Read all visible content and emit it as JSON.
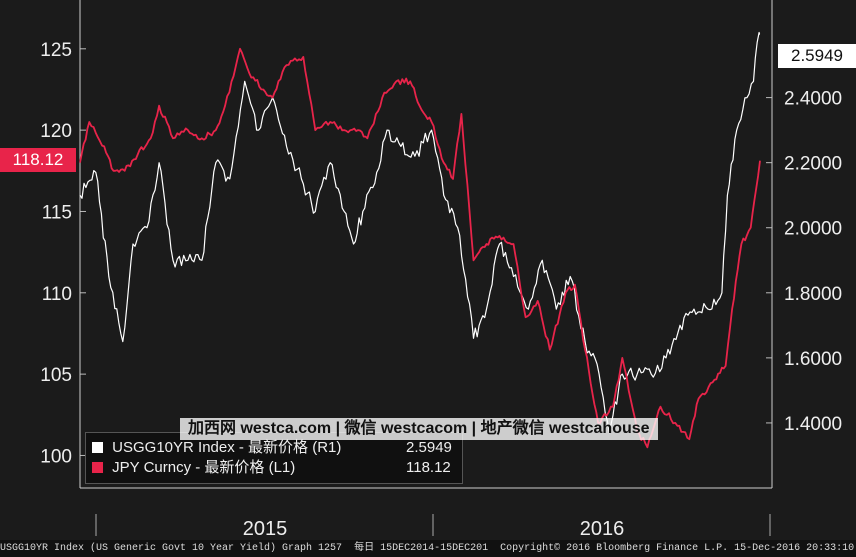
{
  "chart_data": {
    "type": "line",
    "x_range": [
      "2014-12-15",
      "2016-12-15"
    ],
    "x_ticks": [
      "2015",
      "2016"
    ],
    "left_axis": {
      "ticks": [
        "100",
        "105",
        "110",
        "115",
        "120",
        "125"
      ],
      "range": [
        98,
        128
      ]
    },
    "right_axis": {
      "ticks": [
        "1.4000",
        "1.6000",
        "1.8000",
        "2.0000",
        "2.2000",
        "2.4000"
      ],
      "range": [
        1.2,
        2.7
      ]
    },
    "series": [
      {
        "name": "USGG10YR Index - 最新价格 (R1)",
        "last_value": "2.5949",
        "axis": "right",
        "color": "#ffffff",
        "values": [
          [
            "2014-12-15",
            2.1
          ],
          [
            "2015-01-01",
            2.17
          ],
          [
            "2015-01-15",
            1.85
          ],
          [
            "2015-01-30",
            1.65
          ],
          [
            "2015-02-10",
            1.95
          ],
          [
            "2015-02-25",
            2.0
          ],
          [
            "2015-03-10",
            2.2
          ],
          [
            "2015-03-25",
            1.9
          ],
          [
            "2015-04-10",
            1.9
          ],
          [
            "2015-04-25",
            1.9
          ],
          [
            "2015-05-10",
            2.2
          ],
          [
            "2015-05-25",
            2.15
          ],
          [
            "2015-06-10",
            2.45
          ],
          [
            "2015-06-25",
            2.3
          ],
          [
            "2015-07-10",
            2.4
          ],
          [
            "2015-07-25",
            2.25
          ],
          [
            "2015-08-10",
            2.15
          ],
          [
            "2015-08-25",
            2.05
          ],
          [
            "2015-09-10",
            2.2
          ],
          [
            "2015-09-25",
            2.05
          ],
          [
            "2015-10-05",
            1.95
          ],
          [
            "2015-10-15",
            2.05
          ],
          [
            "2015-10-30",
            2.17
          ],
          [
            "2015-11-10",
            2.3
          ],
          [
            "2015-11-25",
            2.25
          ],
          [
            "2015-12-10",
            2.22
          ],
          [
            "2015-12-28",
            2.3
          ],
          [
            "2016-01-10",
            2.1
          ],
          [
            "2016-01-25",
            2.0
          ],
          [
            "2016-02-11",
            1.66
          ],
          [
            "2016-02-25",
            1.75
          ],
          [
            "2016-03-10",
            1.95
          ],
          [
            "2016-03-25",
            1.85
          ],
          [
            "2016-04-10",
            1.75
          ],
          [
            "2016-04-25",
            1.9
          ],
          [
            "2016-05-10",
            1.75
          ],
          [
            "2016-05-25",
            1.85
          ],
          [
            "2016-06-10",
            1.65
          ],
          [
            "2016-06-25",
            1.55
          ],
          [
            "2016-07-06",
            1.37
          ],
          [
            "2016-07-20",
            1.55
          ],
          [
            "2016-08-05",
            1.55
          ],
          [
            "2016-08-20",
            1.55
          ],
          [
            "2016-09-05",
            1.6
          ],
          [
            "2016-09-20",
            1.7
          ],
          [
            "2016-10-05",
            1.75
          ],
          [
            "2016-10-20",
            1.75
          ],
          [
            "2016-11-04",
            1.8
          ],
          [
            "2016-11-10",
            2.1
          ],
          [
            "2016-11-20",
            2.3
          ],
          [
            "2016-12-01",
            2.4
          ],
          [
            "2016-12-08",
            2.45
          ],
          [
            "2016-12-14",
            2.6
          ],
          [
            "2016-12-15",
            2.5949
          ]
        ]
      },
      {
        "name": "JPY Curncy - 最新价格 (L1)",
        "last_value": "118.12",
        "axis": "left",
        "color": "#e8244a",
        "values": [
          [
            "2014-12-15",
            118.0
          ],
          [
            "2014-12-25",
            120.5
          ],
          [
            "2015-01-10",
            119.0
          ],
          [
            "2015-01-20",
            117.5
          ],
          [
            "2015-02-01",
            117.5
          ],
          [
            "2015-02-15",
            118.5
          ],
          [
            "2015-03-01",
            119.5
          ],
          [
            "2015-03-10",
            121.5
          ],
          [
            "2015-03-25",
            119.5
          ],
          [
            "2015-04-10",
            120.0
          ],
          [
            "2015-04-25",
            119.5
          ],
          [
            "2015-05-10",
            120.0
          ],
          [
            "2015-05-20",
            121.5
          ],
          [
            "2015-06-05",
            125.0
          ],
          [
            "2015-06-15",
            123.5
          ],
          [
            "2015-06-30",
            122.5
          ],
          [
            "2015-07-10",
            122.0
          ],
          [
            "2015-07-25",
            124.0
          ],
          [
            "2015-08-12",
            124.5
          ],
          [
            "2015-08-25",
            120.0
          ],
          [
            "2015-09-10",
            120.5
          ],
          [
            "2015-09-25",
            120.0
          ],
          [
            "2015-10-10",
            120.0
          ],
          [
            "2015-10-20",
            119.5
          ],
          [
            "2015-11-05",
            122.0
          ],
          [
            "2015-11-20",
            123.0
          ],
          [
            "2015-12-05",
            123.0
          ],
          [
            "2015-12-15",
            121.5
          ],
          [
            "2015-12-28",
            120.5
          ],
          [
            "2016-01-10",
            118.0
          ],
          [
            "2016-01-20",
            117.0
          ],
          [
            "2016-01-29",
            121.0
          ],
          [
            "2016-02-11",
            112.0
          ],
          [
            "2016-02-25",
            113.0
          ],
          [
            "2016-03-10",
            113.5
          ],
          [
            "2016-03-25",
            113.0
          ],
          [
            "2016-04-07",
            108.5
          ],
          [
            "2016-04-20",
            109.5
          ],
          [
            "2016-05-03",
            106.5
          ],
          [
            "2016-05-20",
            110.0
          ],
          [
            "2016-05-30",
            110.5
          ],
          [
            "2016-06-10",
            106.5
          ],
          [
            "2016-06-24",
            102.0
          ],
          [
            "2016-07-10",
            103.0
          ],
          [
            "2016-07-20",
            106.0
          ],
          [
            "2016-08-05",
            101.5
          ],
          [
            "2016-08-16",
            100.5
          ],
          [
            "2016-08-30",
            103.0
          ],
          [
            "2016-09-15",
            102.0
          ],
          [
            "2016-09-30",
            101.0
          ],
          [
            "2016-10-10",
            103.5
          ],
          [
            "2016-10-25",
            104.5
          ],
          [
            "2016-11-08",
            105.5
          ],
          [
            "2016-11-15",
            109.0
          ],
          [
            "2016-11-25",
            113.0
          ],
          [
            "2016-12-05",
            114.0
          ],
          [
            "2016-12-15",
            118.12
          ]
        ]
      }
    ]
  },
  "tags": {
    "left": "118.12",
    "right": "2.5949"
  },
  "legend": [
    {
      "label": "USGG10YR Index - 最新价格 (R1)",
      "value": "2.5949",
      "color": "#ffffff"
    },
    {
      "label": "JPY Curncy - 最新价格 (L1)",
      "value": "118.12",
      "color": "#e8244a"
    }
  ],
  "watermark": "加西网 westca.com | 微信 westcacom | 地产微信 westcahouse",
  "footer": {
    "left": "USGG10YR Index (US Generic Govt 10 Year Yield) Graph 1257",
    "mid": "每日 15DEC2014-15DEC201",
    "right": "Copyright© 2016 Bloomberg Finance L.P. 15-Dec-2016 20:33:10"
  }
}
